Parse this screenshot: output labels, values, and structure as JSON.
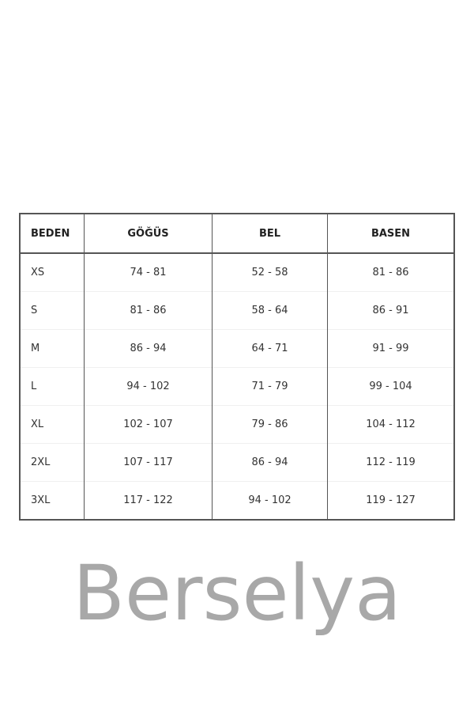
{
  "table": {
    "headers": [
      "BEDEN",
      "GÖĞÜS",
      "BEL",
      "BASEN"
    ],
    "rows": [
      [
        "XS",
        "74 - 81",
        "52 - 58",
        "81 - 86"
      ],
      [
        "S",
        "81 - 86",
        "58 - 64",
        "86 - 91"
      ],
      [
        "M",
        "86 - 94",
        "64 - 71",
        "91 - 99"
      ],
      [
        "L",
        "94 - 102",
        "71 - 79",
        "99 - 104"
      ],
      [
        "XL",
        "102 - 107",
        "79 - 86",
        "104 - 112"
      ],
      [
        "2XL",
        "107 - 117",
        "86 - 94",
        "112 - 119"
      ],
      [
        "3XL",
        "117 - 122",
        "94 - 102",
        "119 - 127"
      ]
    ]
  },
  "watermark": "Berselya"
}
